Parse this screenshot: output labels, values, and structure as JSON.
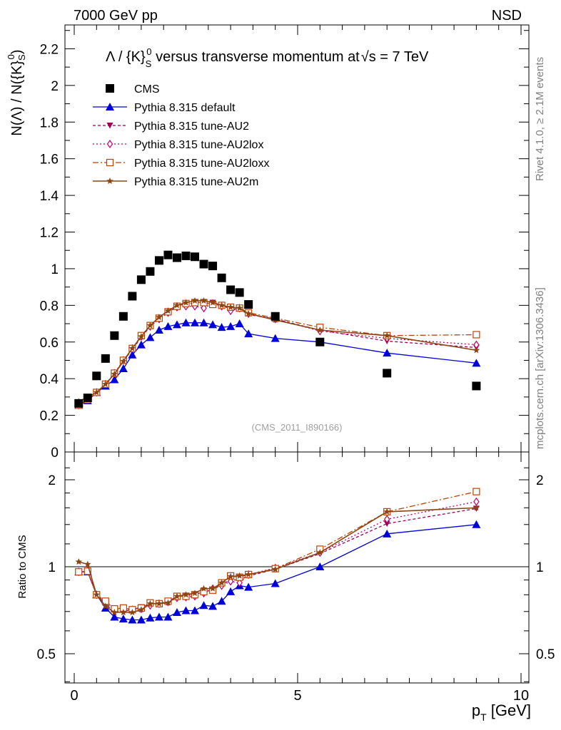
{
  "header": {
    "energy_label": "7000 GeV pp",
    "process_label": "NSD",
    "rivet_label": "Rivet 4.1.0, ≥ 2.1M events",
    "source_label": "mcplots.cern.ch [arXiv:1306.3436]",
    "analysis_label": "(CMS_2011_I890166)"
  },
  "colors": {
    "cms": "#000000",
    "default": "#0000dd",
    "au2": "#a0005a",
    "au2lox": "#c0006e",
    "au2loxx": "#c04000",
    "au2m": "#8b4513"
  },
  "chart_data": [
    {
      "type": "scatter",
      "panel": "main",
      "title": "Λ / {K}S0 versus transverse momentum at √s = 7 TeV",
      "title_parts": {
        "prefix": "Λ / {K}",
        "sub": "S",
        "sup": "0",
        "suffix": " versus transverse momentum at",
        "sqrt": "s",
        "tail": " = 7 TeV"
      },
      "ylabel": "N(Λ)  /  N({K}S0)",
      "ylabel_parts": {
        "main": "N(Λ)  /  N({K}",
        "sub": "S",
        "sup": "0",
        "close": ")"
      },
      "xlim": [
        0,
        10
      ],
      "ylim": [
        0,
        2.33
      ],
      "yticks": [
        0,
        0.2,
        0.4,
        0.6,
        0.8,
        1,
        1.2,
        1.4,
        1.6,
        1.8,
        2,
        2.2
      ],
      "ytick_labels": [
        "0",
        "0.2",
        "0.4",
        "0.6",
        "0.8",
        "1",
        "1.2",
        "1.4",
        "1.6",
        "1.8",
        "2",
        "2.2"
      ],
      "legend_position": "top-left",
      "series": [
        {
          "name": "CMS",
          "style": "cms",
          "marker": "square",
          "x": [
            0.1,
            0.3,
            0.5,
            0.7,
            0.9,
            1.1,
            1.3,
            1.5,
            1.7,
            1.9,
            2.1,
            2.3,
            2.5,
            2.7,
            2.9,
            3.1,
            3.3,
            3.5,
            3.7,
            3.9,
            4.5,
            5.5,
            7.0,
            9.0
          ],
          "y": [
            0.265,
            0.295,
            0.415,
            0.51,
            0.635,
            0.74,
            0.85,
            0.94,
            0.985,
            1.045,
            1.075,
            1.06,
            1.07,
            1.065,
            1.025,
            1.015,
            0.95,
            0.885,
            0.87,
            0.805,
            0.74,
            0.6,
            0.43,
            0.36
          ]
        },
        {
          "name": "Pythia 8.315 default",
          "style": "default",
          "marker": "triangle-up",
          "x": [
            0.1,
            0.3,
            0.5,
            0.7,
            0.9,
            1.1,
            1.3,
            1.5,
            1.7,
            1.9,
            2.1,
            2.3,
            2.5,
            2.7,
            2.9,
            3.1,
            3.3,
            3.5,
            3.7,
            3.9,
            4.5,
            5.5,
            7.0,
            9.0
          ],
          "y": [
            0.255,
            0.28,
            0.325,
            0.36,
            0.395,
            0.455,
            0.53,
            0.585,
            0.625,
            0.665,
            0.685,
            0.695,
            0.705,
            0.705,
            0.705,
            0.695,
            0.68,
            0.685,
            0.7,
            0.645,
            0.62,
            0.6,
            0.54,
            0.485
          ]
        },
        {
          "name": "Pythia 8.315 tune-AU2",
          "style": "au2",
          "marker": "triangle-down",
          "x": [
            0.1,
            0.3,
            0.5,
            0.7,
            0.9,
            1.1,
            1.3,
            1.5,
            1.7,
            1.9,
            2.1,
            2.3,
            2.5,
            2.7,
            2.9,
            3.1,
            3.3,
            3.5,
            3.7,
            3.9,
            4.5,
            5.5,
            7.0,
            9.0
          ],
          "y": [
            0.255,
            0.285,
            0.32,
            0.365,
            0.43,
            0.495,
            0.56,
            0.625,
            0.685,
            0.725,
            0.76,
            0.795,
            0.81,
            0.81,
            0.81,
            0.815,
            0.8,
            0.78,
            0.78,
            0.75,
            0.725,
            0.665,
            0.605,
            0.57
          ]
        },
        {
          "name": "Pythia 8.315 tune-AU2lox",
          "style": "au2lox",
          "marker": "diamond-open",
          "x": [
            0.1,
            0.3,
            0.5,
            0.7,
            0.9,
            1.1,
            1.3,
            1.5,
            1.7,
            1.9,
            2.1,
            2.3,
            2.5,
            2.7,
            2.9,
            3.1,
            3.3,
            3.5,
            3.7,
            3.9,
            4.5,
            5.5,
            7.0,
            9.0
          ],
          "y": [
            0.255,
            0.285,
            0.325,
            0.37,
            0.43,
            0.5,
            0.565,
            0.63,
            0.685,
            0.725,
            0.76,
            0.79,
            0.795,
            0.795,
            0.785,
            0.81,
            0.795,
            0.77,
            0.785,
            0.755,
            0.725,
            0.66,
            0.62,
            0.585
          ]
        },
        {
          "name": "Pythia 8.315 tune-AU2loxx",
          "style": "au2loxx",
          "marker": "square-open",
          "x": [
            0.1,
            0.3,
            0.5,
            0.7,
            0.9,
            1.1,
            1.3,
            1.5,
            1.7,
            1.9,
            2.1,
            2.3,
            2.5,
            2.7,
            2.9,
            3.1,
            3.3,
            3.5,
            3.7,
            3.9,
            4.5,
            5.5,
            7.0,
            9.0
          ],
          "y": [
            0.255,
            0.285,
            0.325,
            0.37,
            0.43,
            0.5,
            0.565,
            0.635,
            0.69,
            0.73,
            0.765,
            0.795,
            0.81,
            0.815,
            0.815,
            0.805,
            0.8,
            0.79,
            0.785,
            0.76,
            0.73,
            0.68,
            0.635,
            0.64
          ]
        },
        {
          "name": "Pythia 8.315 tune-AU2m",
          "style": "au2m",
          "marker": "star",
          "x": [
            0.1,
            0.3,
            0.5,
            0.7,
            0.9,
            1.1,
            1.3,
            1.5,
            1.7,
            1.9,
            2.1,
            2.3,
            2.5,
            2.7,
            2.9,
            3.1,
            3.3,
            3.5,
            3.7,
            3.9,
            4.5,
            5.5,
            7.0,
            9.0
          ],
          "y": [
            0.275,
            0.3,
            0.325,
            0.37,
            0.425,
            0.495,
            0.565,
            0.63,
            0.69,
            0.735,
            0.77,
            0.8,
            0.815,
            0.825,
            0.825,
            0.815,
            0.8,
            0.79,
            0.785,
            0.755,
            0.72,
            0.665,
            0.635,
            0.555
          ]
        }
      ]
    },
    {
      "type": "line",
      "panel": "ratio",
      "ylabel": "Ratio to CMS",
      "xlabel": "pT [GeV]",
      "xlabel_parts": {
        "main": "p",
        "sub": "T",
        "unit": " [GeV]"
      },
      "xlim": [
        0,
        10
      ],
      "ylim": [
        0.39,
        2.28
      ],
      "yscale": "log",
      "reference_line": 1,
      "xticks": [
        0,
        5,
        10
      ],
      "xtick_labels": [
        "0",
        "5",
        "10"
      ],
      "yticks": [
        0.5,
        1,
        2
      ],
      "ytick_labels": [
        "0.5",
        "1",
        "2"
      ],
      "series": [
        {
          "name": "Pythia 8.315 default",
          "style": "default",
          "marker": "triangle-up",
          "x": [
            0.1,
            0.3,
            0.5,
            0.7,
            0.9,
            1.1,
            1.3,
            1.5,
            1.7,
            1.9,
            2.1,
            2.3,
            2.5,
            2.7,
            2.9,
            3.1,
            3.3,
            3.5,
            3.7,
            3.9,
            4.5,
            5.5,
            7.0,
            9.0
          ],
          "y": [
            0.96,
            0.96,
            0.8,
            0.72,
            0.67,
            0.66,
            0.655,
            0.655,
            0.665,
            0.67,
            0.67,
            0.695,
            0.705,
            0.705,
            0.735,
            0.73,
            0.76,
            0.82,
            0.86,
            0.85,
            0.875,
            1.0,
            1.3,
            1.4
          ]
        },
        {
          "name": "Pythia 8.315 tune-AU2",
          "style": "au2",
          "marker": "triangle-down",
          "x": [
            0.1,
            0.3,
            0.5,
            0.7,
            0.9,
            1.1,
            1.3,
            1.5,
            1.7,
            1.9,
            2.1,
            2.3,
            2.5,
            2.7,
            2.9,
            3.1,
            3.3,
            3.5,
            3.7,
            3.9,
            4.5,
            5.5,
            7.0,
            9.0
          ],
          "y": [
            0.96,
            0.965,
            0.8,
            0.74,
            0.7,
            0.7,
            0.71,
            0.725,
            0.745,
            0.745,
            0.755,
            0.79,
            0.795,
            0.8,
            0.82,
            0.83,
            0.87,
            0.9,
            0.9,
            0.93,
            0.98,
            1.11,
            1.41,
            1.59
          ]
        },
        {
          "name": "Pythia 8.315 tune-AU2lox",
          "style": "au2lox",
          "marker": "diamond-open",
          "x": [
            0.1,
            0.3,
            0.5,
            0.7,
            0.9,
            1.1,
            1.3,
            1.5,
            1.7,
            1.9,
            2.1,
            2.3,
            2.5,
            2.7,
            2.9,
            3.1,
            3.3,
            3.5,
            3.7,
            3.9,
            4.5,
            5.5,
            7.0,
            9.0
          ],
          "y": [
            0.96,
            0.965,
            0.8,
            0.75,
            0.705,
            0.715,
            0.71,
            0.715,
            0.735,
            0.745,
            0.755,
            0.78,
            0.785,
            0.79,
            0.81,
            0.84,
            0.86,
            0.89,
            0.88,
            0.94,
            0.99,
            1.12,
            1.46,
            1.68
          ]
        },
        {
          "name": "Pythia 8.315 tune-AU2loxx",
          "style": "au2loxx",
          "marker": "square-open",
          "x": [
            0.1,
            0.3,
            0.5,
            0.7,
            0.9,
            1.1,
            1.3,
            1.5,
            1.7,
            1.9,
            2.1,
            2.3,
            2.5,
            2.7,
            2.9,
            3.1,
            3.3,
            3.5,
            3.7,
            3.9,
            4.5,
            5.5,
            7.0,
            9.0
          ],
          "y": [
            0.96,
            0.965,
            0.8,
            0.76,
            0.715,
            0.72,
            0.71,
            0.72,
            0.75,
            0.745,
            0.76,
            0.79,
            0.79,
            0.8,
            0.82,
            0.83,
            0.88,
            0.93,
            0.92,
            0.94,
            0.985,
            1.15,
            1.55,
            1.82
          ]
        },
        {
          "name": "Pythia 8.315 tune-AU2m",
          "style": "au2m",
          "marker": "star",
          "x": [
            0.1,
            0.3,
            0.5,
            0.7,
            0.9,
            1.1,
            1.3,
            1.5,
            1.7,
            1.9,
            2.1,
            2.3,
            2.5,
            2.7,
            2.9,
            3.1,
            3.3,
            3.5,
            3.7,
            3.9,
            4.5,
            5.5,
            7.0,
            9.0
          ],
          "y": [
            1.04,
            1.02,
            0.8,
            0.73,
            0.695,
            0.695,
            0.695,
            0.71,
            0.745,
            0.745,
            0.75,
            0.79,
            0.8,
            0.81,
            0.84,
            0.84,
            0.88,
            0.925,
            0.93,
            0.94,
            0.98,
            1.12,
            1.55,
            1.6
          ]
        }
      ]
    }
  ]
}
